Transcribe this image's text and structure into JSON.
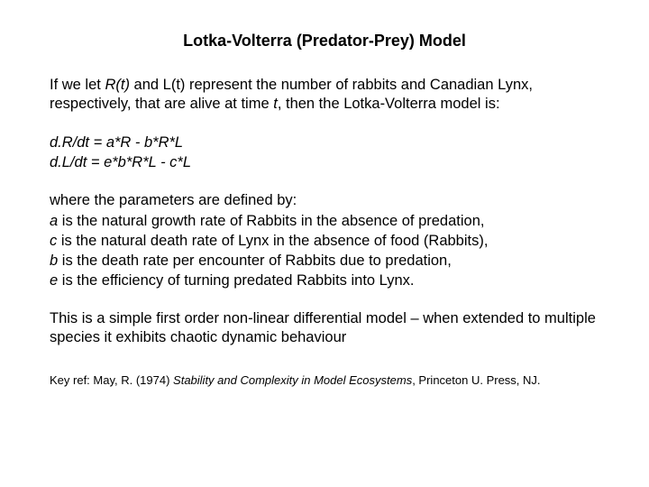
{
  "title": "Lotka-Volterra (Predator-Prey) Model",
  "intro": {
    "pre": "If we let ",
    "rt": "R(t)",
    "mid1": " and ",
    "lt": "L(t)",
    "mid2": " represent the number of rabbits and Canadian Lynx, respectively, that are alive at time ",
    "t": "t",
    "post": ", then the Lotka-Volterra model is:"
  },
  "eq1": "d.R/dt = a*R - b*R*L",
  "eq2": "d.L/dt = e*b*R*L - c*L",
  "params_intro": "where the parameters are defined by:",
  "param_a_pre": "a",
  "param_a": " is the natural growth rate of Rabbits in the absence of predation,",
  "param_c_pre": "c",
  "param_c": " is the natural death rate of Lynx in the absence of food (Rabbits),",
  "param_b_pre": "b",
  "param_b": " is the death rate per encounter of Rabbits due to predation,",
  "param_e_pre": "e",
  "param_e": " is the efficiency of turning predated Rabbits into Lynx.",
  "closing": "This is a simple first order non-linear differential model – when extended to multiple species it exhibits chaotic dynamic behaviour",
  "ref_pre": "Key ref: May, R. (1974) ",
  "ref_title": "Stability and Complexity in Model Ecosystems",
  "ref_post": ", Princeton U. Press, NJ."
}
